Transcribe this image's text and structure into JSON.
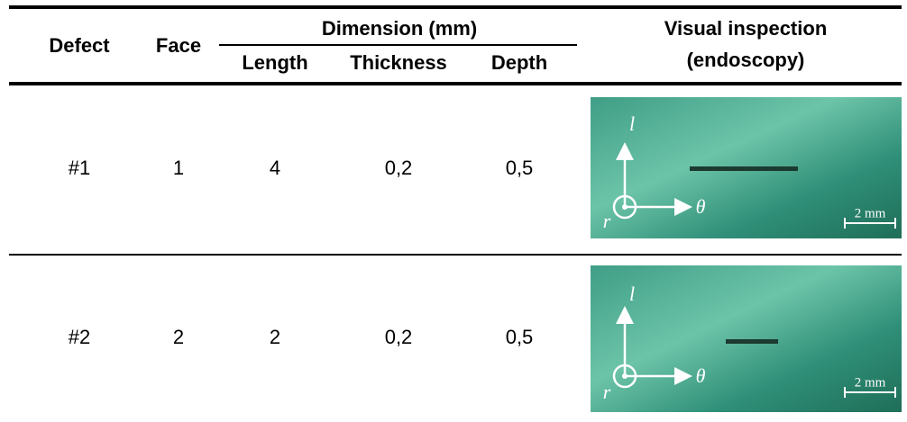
{
  "header": {
    "defect": "Defect",
    "face": "Face",
    "dimension": "Dimension (mm)",
    "length": "Length",
    "thickness": "Thickness",
    "depth": "Depth",
    "visual": [
      "Visual inspection",
      "(endoscopy)"
    ]
  },
  "table": {
    "rows": [
      [
        "#1",
        "1",
        "4",
        "0,2",
        "0,5"
      ],
      [
        "#2",
        "2",
        "2",
        "0,2",
        "0,5"
      ]
    ]
  },
  "images": [
    {
      "l": "l",
      "theta": "θ",
      "r": "r",
      "scale": "2 mm"
    },
    {
      "l": "l",
      "theta": "θ",
      "r": "r",
      "scale": "2 mm"
    }
  ]
}
